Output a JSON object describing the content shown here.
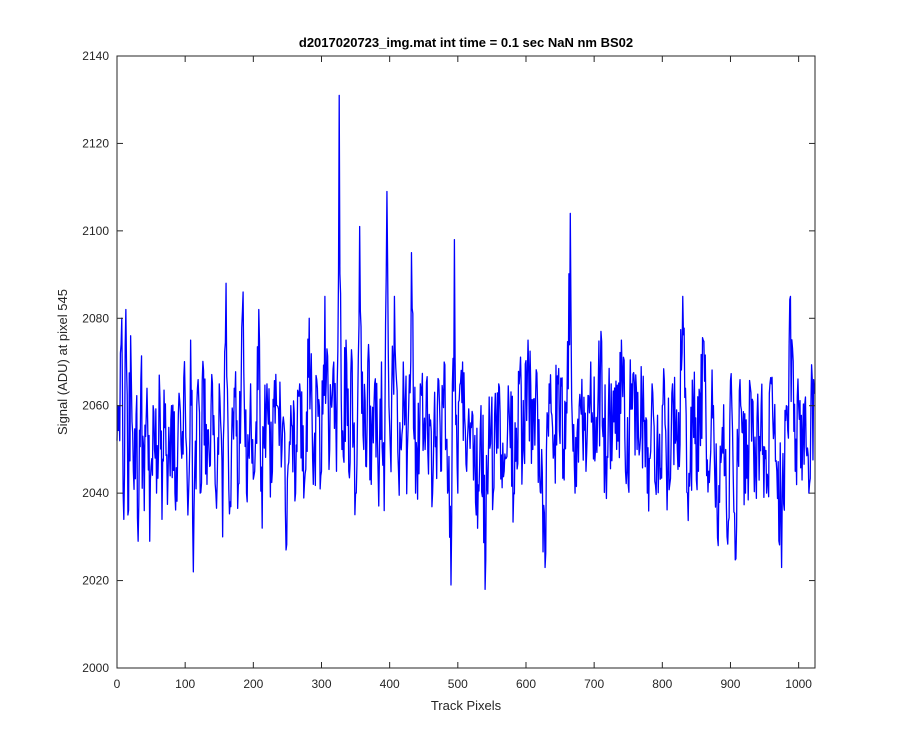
{
  "chart_data": {
    "type": "line",
    "title": "d2017020723_img.mat int time = 0.1 sec  NaN nm BS02",
    "xlabel": "Track Pixels",
    "ylabel": "Signal (ADU) at pixel 545",
    "xlim": [
      0,
      1024
    ],
    "ylim": [
      2000,
      2140
    ],
    "xticks": [
      0,
      100,
      200,
      300,
      400,
      500,
      600,
      700,
      800,
      900,
      1000
    ],
    "yticks": [
      2000,
      2020,
      2040,
      2060,
      2080,
      2100,
      2120,
      2140
    ],
    "grid": false,
    "line_color": "#0000ff",
    "series": [
      {
        "n_points": 1024,
        "noise_seed": 545,
        "anchors": [
          [
            0,
            2052
          ],
          [
            1,
            2060
          ],
          [
            4,
            2052
          ],
          [
            7,
            2080
          ],
          [
            10,
            2034
          ],
          [
            13,
            2082
          ],
          [
            16,
            2035
          ],
          [
            20,
            2076
          ],
          [
            24,
            2045
          ],
          [
            28,
            2058
          ],
          [
            31,
            2029
          ],
          [
            35,
            2066
          ],
          [
            40,
            2036
          ],
          [
            44,
            2064
          ],
          [
            48,
            2029
          ],
          [
            53,
            2060
          ],
          [
            58,
            2040
          ],
          [
            62,
            2067
          ],
          [
            66,
            2034
          ],
          [
            70,
            2055
          ],
          [
            75,
            2045
          ],
          [
            80,
            2060
          ],
          [
            85,
            2040
          ],
          [
            90,
            2058
          ],
          [
            95,
            2048
          ],
          [
            100,
            2062
          ],
          [
            104,
            2035
          ],
          [
            108,
            2075
          ],
          [
            112,
            2022
          ],
          [
            117,
            2060
          ],
          [
            122,
            2040
          ],
          [
            127,
            2068
          ],
          [
            132,
            2042
          ],
          [
            138,
            2060
          ],
          [
            145,
            2040
          ],
          [
            150,
            2065
          ],
          [
            155,
            2030
          ],
          [
            160,
            2088
          ],
          [
            166,
            2038
          ],
          [
            172,
            2064
          ],
          [
            178,
            2042
          ],
          [
            185,
            2086
          ],
          [
            190,
            2040
          ],
          [
            196,
            2065
          ],
          [
            202,
            2045
          ],
          [
            208,
            2082
          ],
          [
            213,
            2032
          ],
          [
            220,
            2065
          ],
          [
            228,
            2045
          ],
          [
            235,
            2060
          ],
          [
            242,
            2050
          ],
          [
            248,
            2027
          ],
          [
            255,
            2060
          ],
          [
            262,
            2040
          ],
          [
            268,
            2065
          ],
          [
            275,
            2042
          ],
          [
            282,
            2080
          ],
          [
            288,
            2042
          ],
          [
            294,
            2064
          ],
          [
            300,
            2045
          ],
          [
            305,
            2085
          ],
          [
            312,
            2050
          ],
          [
            318,
            2070
          ],
          [
            322,
            2045
          ],
          [
            326,
            2131
          ],
          [
            330,
            2050
          ],
          [
            336,
            2075
          ],
          [
            340,
            2045
          ],
          [
            345,
            2070
          ],
          [
            350,
            2040
          ],
          [
            356,
            2101
          ],
          [
            362,
            2050
          ],
          [
            368,
            2070
          ],
          [
            373,
            2042
          ],
          [
            378,
            2065
          ],
          [
            383,
            2045
          ],
          [
            388,
            2070
          ],
          [
            392,
            2036
          ],
          [
            396,
            2109
          ],
          [
            401,
            2050
          ],
          [
            407,
            2085
          ],
          [
            413,
            2045
          ],
          [
            420,
            2070
          ],
          [
            426,
            2050
          ],
          [
            432,
            2095
          ],
          [
            438,
            2040
          ],
          [
            445,
            2065
          ],
          [
            452,
            2050
          ],
          [
            458,
            2058
          ],
          [
            463,
            2040
          ],
          [
            470,
            2060
          ],
          [
            475,
            2045
          ],
          [
            480,
            2070
          ],
          [
            485,
            2040
          ],
          [
            490,
            2019
          ],
          [
            495,
            2098
          ],
          [
            500,
            2040
          ],
          [
            507,
            2070
          ],
          [
            513,
            2045
          ],
          [
            520,
            2055
          ],
          [
            527,
            2035
          ],
          [
            534,
            2060
          ],
          [
            540,
            2018
          ],
          [
            546,
            2062
          ],
          [
            552,
            2040
          ],
          [
            560,
            2065
          ],
          [
            568,
            2045
          ],
          [
            575,
            2060
          ],
          [
            582,
            2040
          ],
          [
            590,
            2065
          ],
          [
            597,
            2050
          ],
          [
            603,
            2075
          ],
          [
            610,
            2050
          ],
          [
            617,
            2060
          ],
          [
            622,
            2040
          ],
          [
            628,
            2023
          ],
          [
            634,
            2065
          ],
          [
            640,
            2048
          ],
          [
            647,
            2065
          ],
          [
            655,
            2050
          ],
          [
            665,
            2104
          ],
          [
            672,
            2040
          ],
          [
            680,
            2060
          ],
          [
            688,
            2045
          ],
          [
            695,
            2070
          ],
          [
            702,
            2050
          ],
          [
            710,
            2077
          ],
          [
            717,
            2045
          ],
          [
            725,
            2065
          ],
          [
            733,
            2050
          ],
          [
            740,
            2075
          ],
          [
            748,
            2045
          ],
          [
            755,
            2065
          ],
          [
            763,
            2050
          ],
          [
            770,
            2060
          ],
          [
            778,
            2040
          ],
          [
            785,
            2065
          ],
          [
            792,
            2050
          ],
          [
            800,
            2060
          ],
          [
            808,
            2045
          ],
          [
            815,
            2065
          ],
          [
            822,
            2050
          ],
          [
            830,
            2085
          ],
          [
            837,
            2040
          ],
          [
            845,
            2060
          ],
          [
            853,
            2045
          ],
          [
            860,
            2075
          ],
          [
            868,
            2045
          ],
          [
            875,
            2060
          ],
          [
            882,
            2028
          ],
          [
            888,
            2055
          ],
          [
            895,
            2030
          ],
          [
            902,
            2060
          ],
          [
            908,
            2025
          ],
          [
            915,
            2060
          ],
          [
            922,
            2040
          ],
          [
            930,
            2063
          ],
          [
            937,
            2045
          ],
          [
            945,
            2060
          ],
          [
            953,
            2040
          ],
          [
            960,
            2065
          ],
          [
            968,
            2045
          ],
          [
            975,
            2023
          ],
          [
            982,
            2060
          ],
          [
            988,
            2085
          ],
          [
            995,
            2045
          ],
          [
            1000,
            2060
          ],
          [
            1005,
            2043
          ],
          [
            1010,
            2062
          ],
          [
            1015,
            2040
          ],
          [
            1020,
            2066
          ],
          [
            1024,
            2040
          ]
        ]
      }
    ]
  }
}
